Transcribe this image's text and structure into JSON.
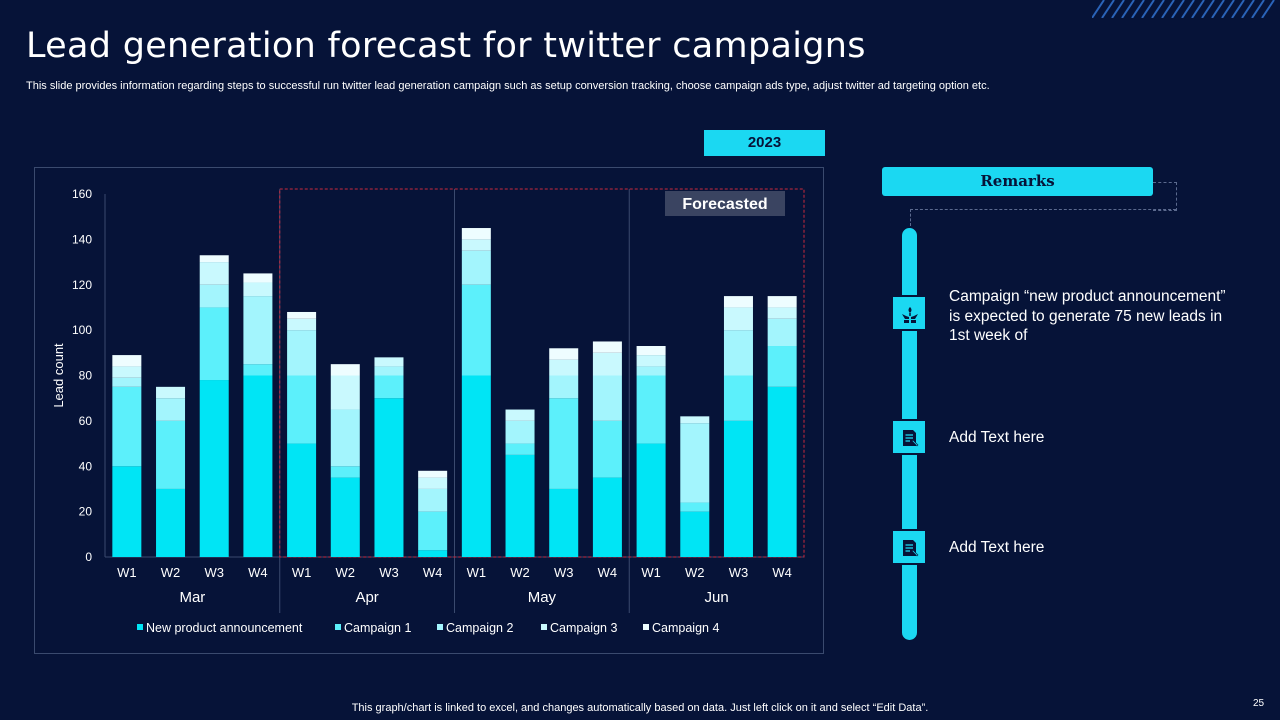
{
  "title": "Lead generation forecast for twitter campaigns",
  "subtitle": "This slide provides information regarding steps to successful run twitter lead generation campaign such as setup conversion tracking, choose campaign ads type, adjust twitter ad targeting option etc.",
  "year_badge": "2023",
  "remarks": {
    "header": "Remarks",
    "items": [
      {
        "icon": "hands-plant-icon",
        "text": "Campaign “new product announcement”  is expected to generate 75 new leads in 1st week of"
      },
      {
        "icon": "document-icon",
        "text": "Add Text here"
      },
      {
        "icon": "document-icon",
        "text": "Add Text here"
      }
    ]
  },
  "footer": "This graph/chart is linked to excel,  and changes automatically based on data. Just left click on it and select “Edit Data”.",
  "page_number": "25",
  "colors": {
    "background": "#061338",
    "accent": "#1bd8f2",
    "series": [
      "#00e5f5",
      "#5cf0fb",
      "#a3f5fd",
      "#c9f9fe",
      "#eefdff"
    ]
  },
  "chart_data": {
    "type": "bar",
    "stacked": true,
    "ylabel": "Lead count",
    "xlabel": "",
    "ylim": [
      0,
      160
    ],
    "yticks": [
      0,
      20,
      40,
      60,
      80,
      100,
      120,
      140,
      160
    ],
    "categories": [
      "W1",
      "W2",
      "W3",
      "W4",
      "W1",
      "W2",
      "W3",
      "W4",
      "W1",
      "W2",
      "W3",
      "W4",
      "W1",
      "W2",
      "W3",
      "W4"
    ],
    "groups": [
      {
        "label": "Mar",
        "count": 4
      },
      {
        "label": "Apr",
        "count": 4
      },
      {
        "label": "May",
        "count": 4
      },
      {
        "label": "Jun",
        "count": 4
      }
    ],
    "forecast_label": "Forecasted",
    "forecast_range": [
      "Apr W1",
      "Jun W4"
    ],
    "legend_position": "bottom",
    "series": [
      {
        "name": "New product announcement",
        "values": [
          40,
          30,
          78,
          80,
          50,
          35,
          70,
          3,
          80,
          45,
          30,
          35,
          50,
          20,
          60,
          75
        ]
      },
      {
        "name": "Campaign 1",
        "values": [
          35,
          30,
          32,
          5,
          30,
          5,
          10,
          17,
          40,
          5,
          40,
          25,
          30,
          4,
          20,
          18
        ]
      },
      {
        "name": "Campaign 2",
        "values": [
          4,
          10,
          10,
          30,
          20,
          25,
          4,
          10,
          15,
          10,
          10,
          20,
          4,
          35,
          20,
          12
        ]
      },
      {
        "name": "Campaign 3",
        "values": [
          5,
          5,
          10,
          6,
          5,
          15,
          4,
          5,
          5,
          5,
          7,
          10,
          5,
          3,
          10,
          5
        ]
      },
      {
        "name": "Campaign 4",
        "values": [
          5,
          0,
          3,
          4,
          3,
          5,
          0,
          3,
          5,
          0,
          5,
          5,
          4,
          0,
          5,
          5
        ]
      }
    ]
  }
}
